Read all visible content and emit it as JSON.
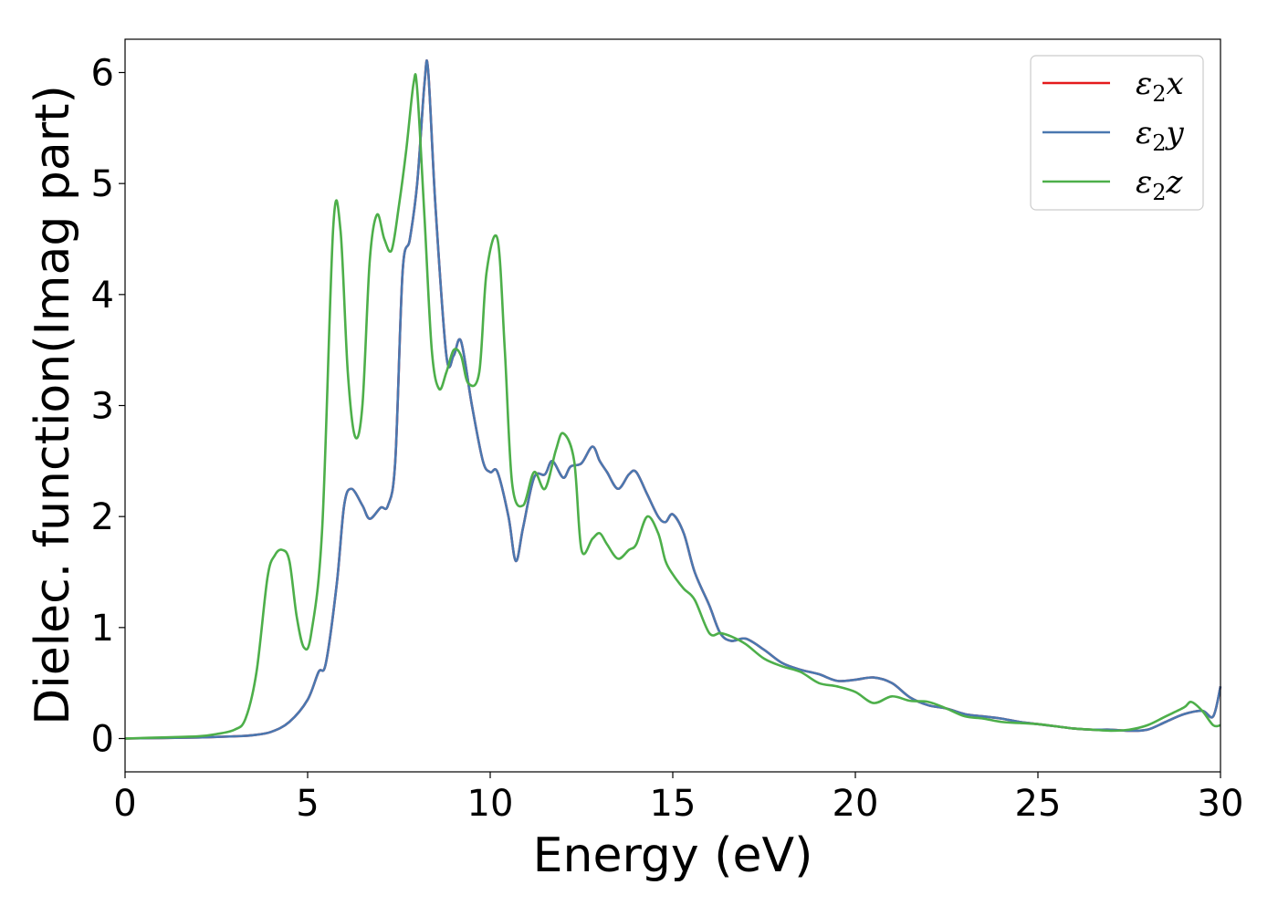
{
  "chart_data": {
    "type": "line",
    "title": "",
    "xlabel": "Energy (eV)",
    "ylabel": "Dielec. function(Imag part)",
    "xlim": [
      0,
      30
    ],
    "ylim": [
      -0.3,
      6.3
    ],
    "xticks": [
      "0",
      "5",
      "10",
      "15",
      "20",
      "25",
      "30"
    ],
    "yticks": [
      "0",
      "1",
      "2",
      "3",
      "4",
      "5",
      "6"
    ],
    "grid": false,
    "legend_position": "top-right",
    "series": [
      {
        "name": "ε₂x",
        "legend_base": "ε",
        "legend_sub": "2",
        "legend_var": "x",
        "color": "#e41a1c",
        "x": [
          0,
          1,
          2,
          3,
          3.5,
          4,
          4.5,
          5,
          5.3,
          5.5,
          5.8,
          6,
          6.2,
          6.5,
          6.7,
          7,
          7.2,
          7.4,
          7.6,
          7.8,
          8,
          8.2,
          8.3,
          8.5,
          8.8,
          9,
          9.2,
          9.5,
          9.8,
          10,
          10.2,
          10.5,
          10.7,
          10.9,
          11.2,
          11.5,
          11.7,
          12,
          12.2,
          12.5,
          12.8,
          13,
          13.2,
          13.5,
          13.8,
          14,
          14.3,
          14.6,
          14.8,
          15,
          15.3,
          15.6,
          16,
          16.3,
          16.6,
          17,
          17.5,
          18,
          18.5,
          19,
          19.5,
          20,
          20.5,
          21,
          21.5,
          22,
          22.5,
          23,
          23.5,
          24,
          24.5,
          25,
          25.5,
          26,
          26.5,
          27,
          27.5,
          28,
          28.5,
          29,
          29.5,
          29.8,
          30
        ],
        "y": [
          0,
          0.005,
          0.01,
          0.02,
          0.03,
          0.06,
          0.15,
          0.35,
          0.6,
          0.68,
          1.4,
          2.1,
          2.25,
          2.1,
          1.98,
          2.08,
          2.1,
          2.5,
          4.2,
          4.5,
          5.0,
          5.9,
          6.02,
          4.8,
          3.45,
          3.45,
          3.58,
          3.0,
          2.5,
          2.4,
          2.4,
          2.0,
          1.6,
          1.9,
          2.35,
          2.38,
          2.5,
          2.35,
          2.45,
          2.48,
          2.63,
          2.5,
          2.4,
          2.25,
          2.38,
          2.4,
          2.2,
          2.0,
          1.95,
          2.02,
          1.85,
          1.5,
          1.2,
          0.95,
          0.88,
          0.9,
          0.8,
          0.68,
          0.62,
          0.58,
          0.52,
          0.53,
          0.55,
          0.5,
          0.37,
          0.3,
          0.27,
          0.22,
          0.2,
          0.18,
          0.15,
          0.13,
          0.11,
          0.09,
          0.08,
          0.08,
          0.07,
          0.08,
          0.15,
          0.22,
          0.25,
          0.2,
          0.47
        ]
      },
      {
        "name": "ε₂y",
        "legend_base": "ε",
        "legend_sub": "2",
        "legend_var": "y",
        "color": "#4a78b0",
        "x": [
          0,
          1,
          2,
          3,
          3.5,
          4,
          4.5,
          5,
          5.3,
          5.5,
          5.8,
          6,
          6.2,
          6.5,
          6.7,
          7,
          7.2,
          7.4,
          7.6,
          7.8,
          8,
          8.2,
          8.3,
          8.5,
          8.8,
          9,
          9.2,
          9.5,
          9.8,
          10,
          10.2,
          10.5,
          10.7,
          10.9,
          11.2,
          11.5,
          11.7,
          12,
          12.2,
          12.5,
          12.8,
          13,
          13.2,
          13.5,
          13.8,
          14,
          14.3,
          14.6,
          14.8,
          15,
          15.3,
          15.6,
          16,
          16.3,
          16.6,
          17,
          17.5,
          18,
          18.5,
          19,
          19.5,
          20,
          20.5,
          21,
          21.5,
          22,
          22.5,
          23,
          23.5,
          24,
          24.5,
          25,
          25.5,
          26,
          26.5,
          27,
          27.5,
          28,
          28.5,
          29,
          29.5,
          29.8,
          30
        ],
        "y": [
          0,
          0.005,
          0.01,
          0.02,
          0.03,
          0.06,
          0.15,
          0.35,
          0.6,
          0.68,
          1.4,
          2.1,
          2.25,
          2.1,
          1.98,
          2.08,
          2.1,
          2.5,
          4.2,
          4.5,
          5.0,
          5.9,
          6.02,
          4.8,
          3.45,
          3.45,
          3.58,
          3.0,
          2.5,
          2.4,
          2.4,
          2.0,
          1.6,
          1.9,
          2.35,
          2.38,
          2.5,
          2.35,
          2.45,
          2.48,
          2.63,
          2.5,
          2.4,
          2.25,
          2.38,
          2.4,
          2.2,
          2.0,
          1.95,
          2.02,
          1.85,
          1.5,
          1.2,
          0.95,
          0.88,
          0.9,
          0.8,
          0.68,
          0.62,
          0.58,
          0.52,
          0.53,
          0.55,
          0.5,
          0.37,
          0.3,
          0.27,
          0.22,
          0.2,
          0.18,
          0.15,
          0.13,
          0.11,
          0.09,
          0.08,
          0.08,
          0.07,
          0.08,
          0.15,
          0.22,
          0.25,
          0.2,
          0.47
        ]
      },
      {
        "name": "ε₂z",
        "legend_base": "ε",
        "legend_sub": "2",
        "legend_var": "z",
        "color": "#4daf4a",
        "x": [
          0,
          1,
          2,
          2.5,
          3,
          3.3,
          3.6,
          3.9,
          4.1,
          4.3,
          4.5,
          4.7,
          4.9,
          5.1,
          5.4,
          5.7,
          5.9,
          6.1,
          6.3,
          6.5,
          6.7,
          6.9,
          7.1,
          7.3,
          7.5,
          7.7,
          7.9,
          8.0,
          8.2,
          8.4,
          8.6,
          8.8,
          9.0,
          9.2,
          9.4,
          9.7,
          9.9,
          10.2,
          10.4,
          10.6,
          10.9,
          11.2,
          11.5,
          11.8,
          12.0,
          12.3,
          12.5,
          12.8,
          13.0,
          13.2,
          13.5,
          13.8,
          14.0,
          14.3,
          14.6,
          14.8,
          15.0,
          15.3,
          15.6,
          16.0,
          16.3,
          16.6,
          17.0,
          17.5,
          18.0,
          18.5,
          19.0,
          19.5,
          20.0,
          20.5,
          21.0,
          21.5,
          22.0,
          22.5,
          23.0,
          23.5,
          24.0,
          24.5,
          25.0,
          25.5,
          26.0,
          26.5,
          27.0,
          27.5,
          28.0,
          28.5,
          29.0,
          29.2,
          29.5,
          29.8,
          30
        ],
        "y": [
          0,
          0.01,
          0.02,
          0.04,
          0.08,
          0.18,
          0.6,
          1.45,
          1.65,
          1.7,
          1.6,
          1.1,
          0.82,
          0.95,
          1.9,
          4.6,
          4.58,
          3.3,
          2.72,
          3.0,
          4.3,
          4.72,
          4.5,
          4.4,
          4.8,
          5.3,
          5.9,
          5.85,
          4.7,
          3.5,
          3.15,
          3.3,
          3.5,
          3.45,
          3.2,
          3.3,
          4.2,
          4.5,
          3.5,
          2.3,
          2.1,
          2.4,
          2.25,
          2.6,
          2.75,
          2.5,
          1.7,
          1.8,
          1.85,
          1.75,
          1.62,
          1.7,
          1.75,
          2.0,
          1.85,
          1.6,
          1.48,
          1.35,
          1.25,
          0.95,
          0.95,
          0.92,
          0.85,
          0.72,
          0.65,
          0.6,
          0.5,
          0.47,
          0.42,
          0.32,
          0.38,
          0.34,
          0.33,
          0.27,
          0.2,
          0.18,
          0.15,
          0.14,
          0.13,
          0.11,
          0.09,
          0.08,
          0.07,
          0.08,
          0.12,
          0.2,
          0.28,
          0.33,
          0.25,
          0.12,
          0.12
        ]
      }
    ]
  }
}
